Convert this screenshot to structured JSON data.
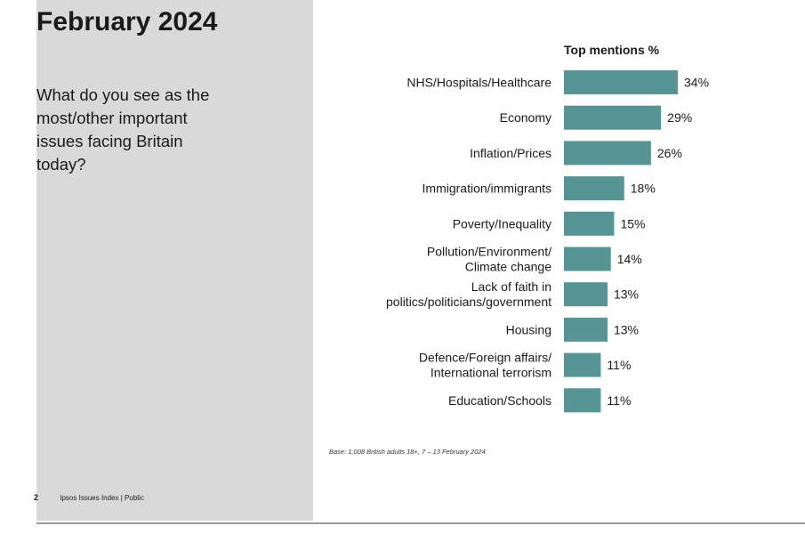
{
  "slide": {
    "title": "February 2024",
    "question": "What do you see as the most/other important issues facing Britain today?",
    "page_number": "2",
    "footer_text": "Ipsos Issues Index | Public",
    "base_note": "Base: 1,008 British adults 18+, 7 – 13 February 2024"
  },
  "colors": {
    "bar": "#579594",
    "panel": "#d9d9d9"
  },
  "chart_data": {
    "type": "bar",
    "orientation": "horizontal",
    "title": "Top mentions %",
    "categories": [
      [
        "NHS/Hospitals/Healthcare"
      ],
      [
        "Economy"
      ],
      [
        "Inflation/Prices"
      ],
      [
        "Immigration/immigrants"
      ],
      [
        "Poverty/Inequality"
      ],
      [
        "Pollution/Environment/",
        "Climate change"
      ],
      [
        "Lack of faith in",
        "politics/politicians/government"
      ],
      [
        "Housing"
      ],
      [
        "Defence/Foreign affairs/",
        "International terrorism"
      ],
      [
        "Education/Schools"
      ]
    ],
    "values": [
      34,
      29,
      26,
      18,
      15,
      14,
      13,
      13,
      11,
      11
    ],
    "value_labels": [
      "34%",
      "29%",
      "26%",
      "18%",
      "15%",
      "14%",
      "13%",
      "13%",
      "11%",
      "11%"
    ],
    "xlim": [
      0,
      34
    ],
    "grid": false,
    "legend": "none"
  }
}
